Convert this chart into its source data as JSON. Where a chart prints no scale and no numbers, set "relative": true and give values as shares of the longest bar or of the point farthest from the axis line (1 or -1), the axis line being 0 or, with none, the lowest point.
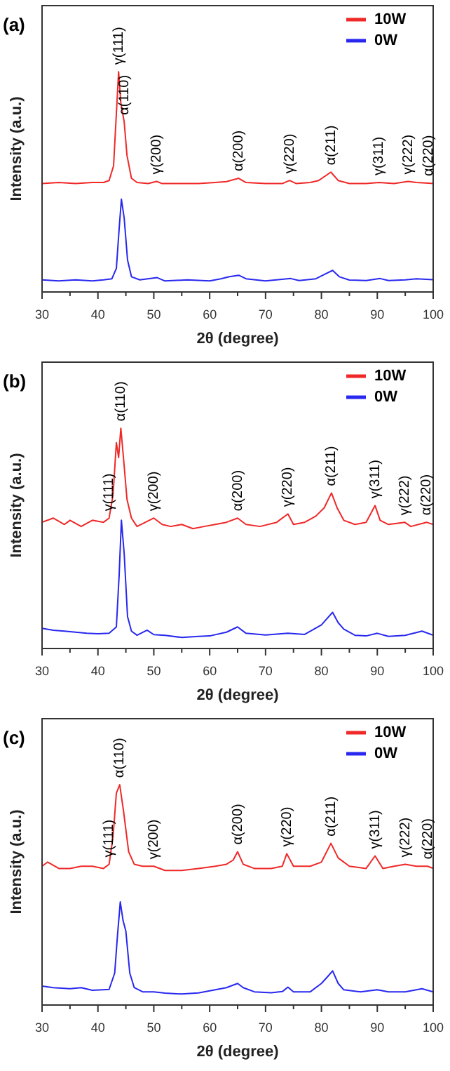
{
  "chart_data": [
    {
      "type": "line",
      "title": "(a)",
      "xlabel": "2θ (degree)",
      "ylabel": "Intensity (a.u.)",
      "relative": true,
      "legend": "top right",
      "grid": false,
      "marker": "none",
      "xlim": [
        30,
        100
      ],
      "xticks": [
        30,
        {
          "value": 35,
          "label": null
        },
        40,
        {
          "value": 45,
          "label": null
        },
        50,
        {
          "value": 55,
          "label": null
        },
        60,
        {
          "value": 65,
          "label": null
        },
        70,
        {
          "value": 75,
          "label": null
        },
        80,
        {
          "value": 85,
          "label": null
        },
        90,
        {
          "value": 95,
          "label": null
        },
        100
      ],
      "series": [
        {
          "name": "10W",
          "color": "#f02828",
          "x": [
            30,
            33,
            36,
            39,
            41,
            42,
            42.8,
            43.3,
            43.7,
            44.1,
            44.7,
            45.2,
            46,
            47,
            49,
            50.5,
            51.5,
            55,
            58,
            61,
            63,
            65.2,
            66.5,
            70,
            73,
            74.3,
            75.5,
            78,
            79.5,
            81.7,
            83,
            85,
            88,
            90.3,
            93,
            95.5,
            97,
            99.2,
            100
          ],
          "values": [
            0.492,
            0.497,
            0.492,
            0.497,
            0.497,
            0.506,
            0.573,
            0.81,
            1,
            0.858,
            0.772,
            0.62,
            0.516,
            0.497,
            0.492,
            0.502,
            0.492,
            0.492,
            0.492,
            0.497,
            0.501,
            0.516,
            0.497,
            0.492,
            0.492,
            0.506,
            0.492,
            0.497,
            0.506,
            0.544,
            0.506,
            0.492,
            0.492,
            0.497,
            0.492,
            0.502,
            0.497,
            0.494,
            0.492
          ]
        },
        {
          "name": "0W",
          "color": "#2828f0",
          "x": [
            30,
            33,
            36,
            39,
            41,
            42.5,
            43.3,
            43.8,
            44.2,
            44.7,
            45.3,
            46,
            47.5,
            50.6,
            52,
            56,
            60,
            62,
            63.5,
            65.2,
            66.5,
            70,
            74.5,
            76,
            79,
            80.5,
            82,
            83.2,
            85,
            88,
            90.5,
            92,
            95,
            97,
            100
          ],
          "values": [
            0.055,
            0.05,
            0.055,
            0.05,
            0.055,
            0.06,
            0.107,
            0.288,
            0.421,
            0.335,
            0.145,
            0.069,
            0.055,
            0.065,
            0.05,
            0.055,
            0.05,
            0.06,
            0.069,
            0.076,
            0.06,
            0.05,
            0.061,
            0.052,
            0.06,
            0.079,
            0.098,
            0.069,
            0.054,
            0.052,
            0.061,
            0.052,
            0.055,
            0.06,
            0.056
          ]
        }
      ],
      "annotations": [
        {
          "text": "γ(111)",
          "x": 43.7,
          "y": 1
        },
        {
          "text": "α(110)",
          "x": 44.7,
          "y": 0.772
        },
        {
          "text": "γ(200)",
          "x": 50.5,
          "y": 0.502
        },
        {
          "text": "α(200)",
          "x": 65.2,
          "y": 0.516
        },
        {
          "text": "γ(220)",
          "x": 74.3,
          "y": 0.506
        },
        {
          "text": "α(211)",
          "x": 81.7,
          "y": 0.544
        },
        {
          "text": "γ(311)",
          "x": 90.3,
          "y": 0.497
        },
        {
          "text": "γ(222)",
          "x": 95.5,
          "y": 0.502
        },
        {
          "text": "α(220)",
          "x": 99.2,
          "y": 0.494
        }
      ]
    },
    {
      "type": "line",
      "title": "(b)",
      "xlabel": "2θ (degree)",
      "ylabel": "Intensity (a.u.)",
      "relative": true,
      "legend": "top right",
      "grid": false,
      "marker": "none",
      "xlim": [
        30,
        100
      ],
      "xticks": [
        30,
        {
          "value": 35,
          "label": null
        },
        40,
        {
          "value": 45,
          "label": null
        },
        50,
        {
          "value": 55,
          "label": null
        },
        60,
        {
          "value": 65,
          "label": null
        },
        70,
        {
          "value": 75,
          "label": null
        },
        80,
        {
          "value": 85,
          "label": null
        },
        90,
        {
          "value": 95,
          "label": null
        },
        100
      ],
      "series": [
        {
          "name": "10W",
          "color": "#f02828",
          "x": [
            30,
            32,
            34,
            35,
            37,
            39,
            41,
            42,
            42.7,
            43.3,
            43.7,
            44.1,
            44.6,
            45.2,
            46,
            47,
            48.5,
            50,
            51.5,
            53,
            55,
            57,
            59,
            61,
            63,
            65,
            66.5,
            69,
            72,
            74,
            75,
            77,
            79,
            80.5,
            81.8,
            82.8,
            84,
            86,
            88,
            89.6,
            90.5,
            92,
            94.9,
            96,
            98.8,
            100
          ],
          "values": [
            0.573,
            0.592,
            0.563,
            0.582,
            0.554,
            0.582,
            0.573,
            0.592,
            0.696,
            0.934,
            0.867,
            1,
            0.858,
            0.677,
            0.592,
            0.554,
            0.573,
            0.592,
            0.563,
            0.554,
            0.563,
            0.544,
            0.554,
            0.563,
            0.573,
            0.592,
            0.563,
            0.554,
            0.573,
            0.611,
            0.563,
            0.573,
            0.601,
            0.639,
            0.706,
            0.639,
            0.582,
            0.563,
            0.573,
            0.649,
            0.582,
            0.563,
            0.573,
            0.554,
            0.573,
            0.563
          ]
        },
        {
          "name": "0W",
          "color": "#2828f0",
          "x": [
            30,
            32,
            34,
            36,
            38,
            40,
            42,
            43.3,
            43.8,
            44.2,
            44.7,
            45.3,
            46,
            47,
            48.8,
            50,
            52,
            55,
            58,
            60,
            63,
            65,
            66.5,
            70,
            74,
            77,
            80,
            81,
            82,
            83,
            84,
            86,
            88,
            90,
            92,
            95,
            98,
            100
          ],
          "values": [
            0.092,
            0.083,
            0.079,
            0.074,
            0.069,
            0.067,
            0.069,
            0.098,
            0.335,
            0.582,
            0.43,
            0.145,
            0.079,
            0.06,
            0.083,
            0.063,
            0.06,
            0.05,
            0.055,
            0.057,
            0.074,
            0.098,
            0.069,
            0.061,
            0.069,
            0.064,
            0.107,
            0.136,
            0.164,
            0.117,
            0.088,
            0.06,
            0.057,
            0.069,
            0.055,
            0.06,
            0.079,
            0.06
          ]
        }
      ],
      "annotations": [
        {
          "text": "γ(111)",
          "x": 42,
          "y": 0.592
        },
        {
          "text": "α(110)",
          "x": 44.1,
          "y": 1
        },
        {
          "text": "γ(200)",
          "x": 50,
          "y": 0.592
        },
        {
          "text": "α(200)",
          "x": 65,
          "y": 0.592
        },
        {
          "text": "γ(220)",
          "x": 74,
          "y": 0.611
        },
        {
          "text": "α(211)",
          "x": 81.8,
          "y": 0.706
        },
        {
          "text": "γ(311)",
          "x": 89.6,
          "y": 0.649
        },
        {
          "text": "γ(222)",
          "x": 94.9,
          "y": 0.573
        },
        {
          "text": "α(220)",
          "x": 98.8,
          "y": 0.573
        }
      ]
    },
    {
      "type": "line",
      "title": "(c)",
      "xlabel": "2θ (degree)",
      "ylabel": "Intensity (a.u.)",
      "relative": true,
      "legend": "top right",
      "grid": false,
      "marker": "none",
      "xlim": [
        30,
        100
      ],
      "xticks": [
        30,
        {
          "value": 35,
          "label": null
        },
        40,
        {
          "value": 45,
          "label": null
        },
        50,
        {
          "value": 55,
          "label": null
        },
        60,
        {
          "value": 65,
          "label": null
        },
        70,
        {
          "value": 75,
          "label": null
        },
        80,
        {
          "value": 85,
          "label": null
        },
        90,
        {
          "value": 95,
          "label": null
        },
        100
      ],
      "series": [
        {
          "name": "10W",
          "color": "#f02828",
          "x": [
            30,
            31,
            33,
            35,
            37,
            39,
            41,
            42,
            42.7,
            43.3,
            43.9,
            44.6,
            45.5,
            46.5,
            48,
            50,
            52,
            55,
            58,
            61,
            63,
            64.2,
            65,
            66,
            68,
            71,
            73,
            73.8,
            75,
            78,
            80,
            81.7,
            83,
            85,
            88,
            89.6,
            91,
            93,
            95,
            97,
            99,
            100
          ],
          "values": [
            0.63,
            0.649,
            0.62,
            0.62,
            0.63,
            0.63,
            0.62,
            0.639,
            0.763,
            0.962,
            1,
            0.877,
            0.696,
            0.639,
            0.63,
            0.63,
            0.611,
            0.611,
            0.62,
            0.63,
            0.639,
            0.658,
            0.696,
            0.639,
            0.62,
            0.62,
            0.63,
            0.687,
            0.63,
            0.63,
            0.649,
            0.734,
            0.668,
            0.63,
            0.62,
            0.677,
            0.62,
            0.63,
            0.639,
            0.63,
            0.63,
            0.62
          ]
        },
        {
          "name": "0W",
          "color": "#2828f0",
          "x": [
            30,
            32,
            35,
            37,
            39,
            42,
            43,
            43.5,
            44,
            44.5,
            45,
            45.7,
            46.5,
            48,
            50,
            52,
            55,
            58,
            61,
            63,
            65,
            66,
            68,
            71,
            73,
            74,
            75,
            78,
            80,
            81,
            82,
            83,
            84,
            87,
            90,
            92,
            95,
            98,
            100
          ],
          "values": [
            0.086,
            0.079,
            0.074,
            0.079,
            0.067,
            0.071,
            0.145,
            0.316,
            0.468,
            0.383,
            0.335,
            0.145,
            0.079,
            0.06,
            0.06,
            0.054,
            0.05,
            0.055,
            0.069,
            0.079,
            0.098,
            0.079,
            0.06,
            0.056,
            0.061,
            0.081,
            0.06,
            0.06,
            0.098,
            0.126,
            0.155,
            0.098,
            0.069,
            0.06,
            0.069,
            0.06,
            0.06,
            0.074,
            0.06
          ]
        }
      ],
      "annotations": [
        {
          "text": "γ(111)",
          "x": 42,
          "y": 0.639
        },
        {
          "text": "α(110)",
          "x": 43.9,
          "y": 1
        },
        {
          "text": "γ(200)",
          "x": 50,
          "y": 0.63
        },
        {
          "text": "α(200)",
          "x": 65,
          "y": 0.696
        },
        {
          "text": "γ(220)",
          "x": 73.8,
          "y": 0.687
        },
        {
          "text": "α(211)",
          "x": 81.7,
          "y": 0.734
        },
        {
          "text": "γ(311)",
          "x": 89.6,
          "y": 0.677
        },
        {
          "text": "γ(222)",
          "x": 95,
          "y": 0.639
        },
        {
          "text": "α(220)",
          "x": 99,
          "y": 0.63
        }
      ]
    }
  ]
}
